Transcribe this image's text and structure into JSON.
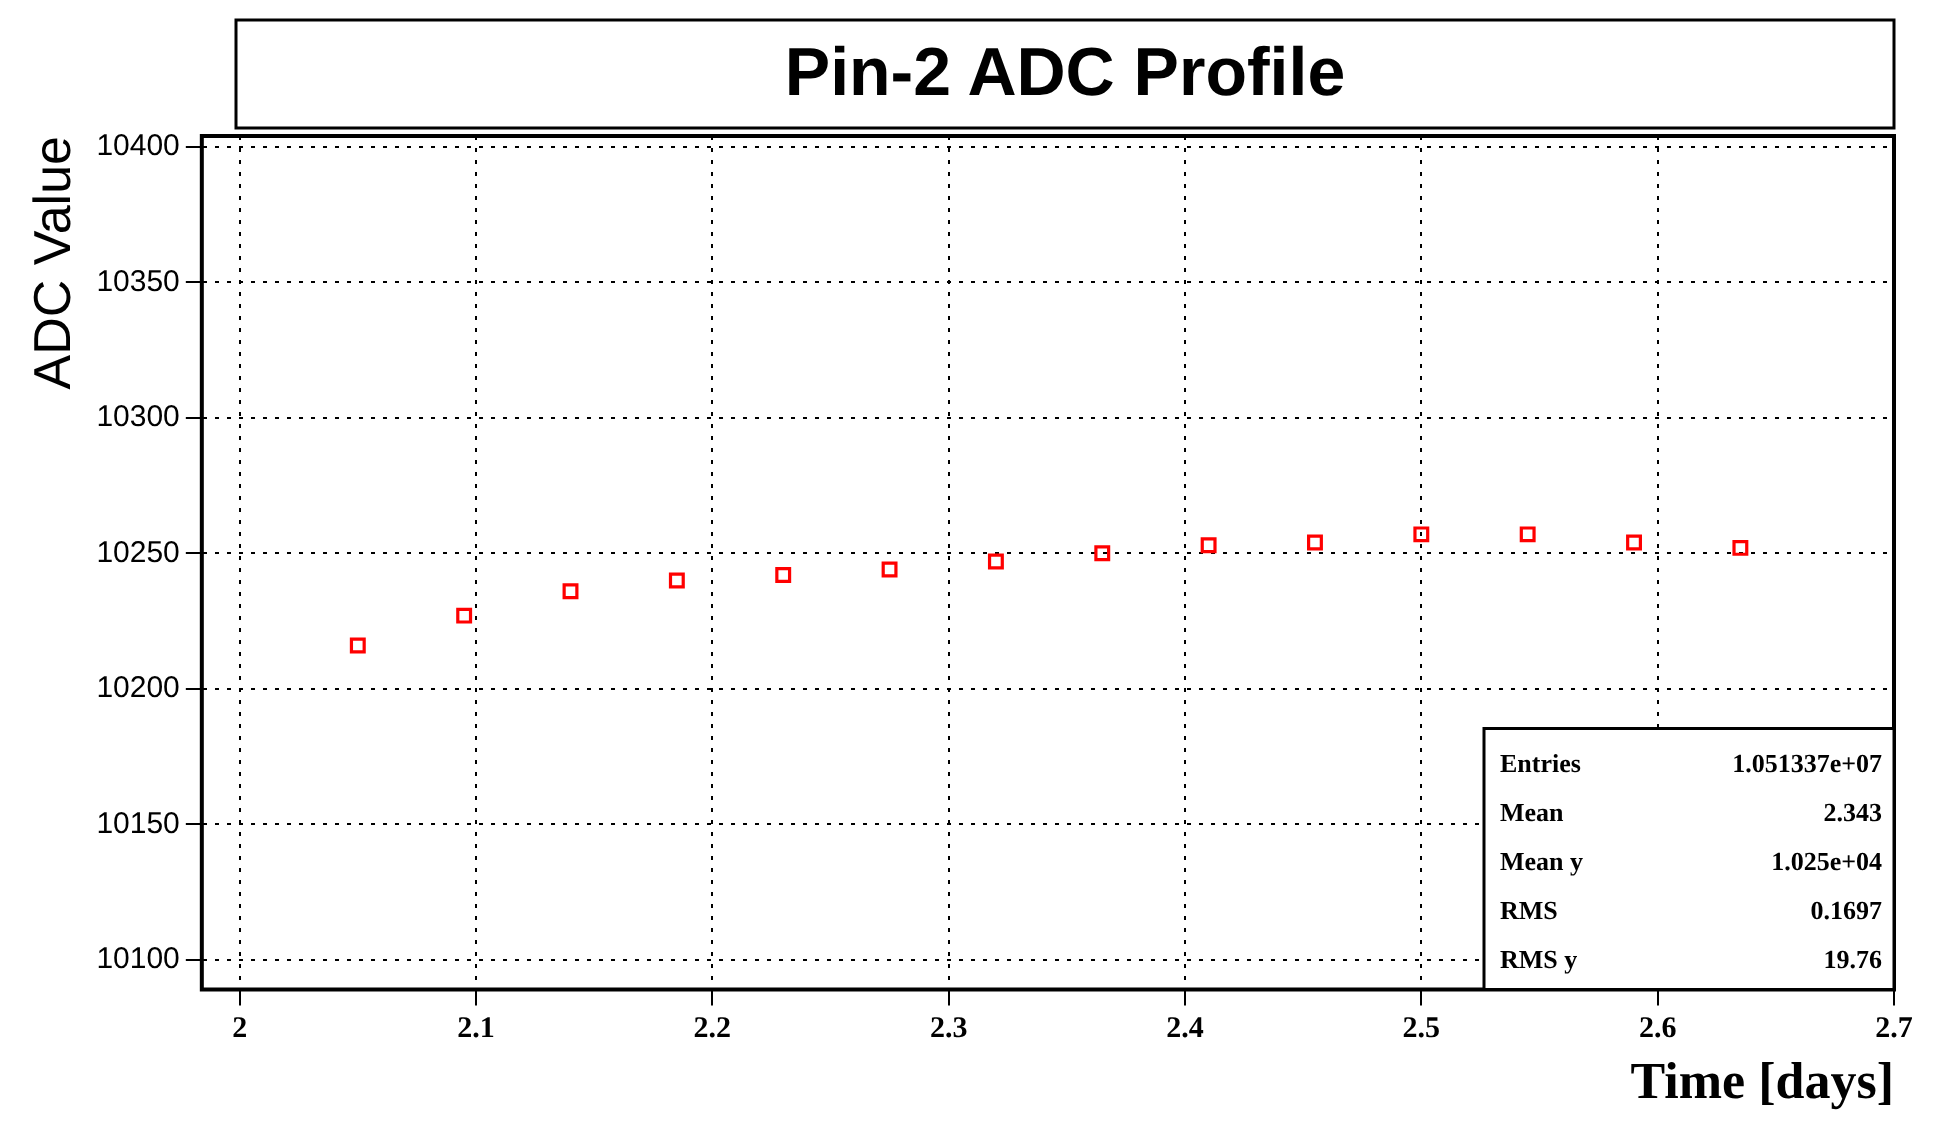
{
  "chart_data": {
    "type": "scatter",
    "title": "Pin-2 ADC Profile",
    "xlabel": "Time [days]",
    "ylabel": "ADC Value",
    "x": [
      2.05,
      2.095,
      2.14,
      2.185,
      2.23,
      2.275,
      2.32,
      2.365,
      2.41,
      2.455,
      2.5,
      2.545,
      2.59,
      2.635
    ],
    "series": [
      {
        "color": "#ff0000",
        "values": [
          10216,
          10227,
          10236,
          10240,
          10242,
          10244,
          10247,
          10250,
          10253,
          10254,
          10257,
          10257,
          10254,
          10252
        ]
      }
    ],
    "xlim": [
      1.984,
      2.7
    ],
    "xticks": [
      2,
      2.1,
      2.2,
      2.3,
      2.4,
      2.5,
      2.6,
      2.7
    ],
    "ylim": [
      10089,
      10404
    ],
    "yticks": [
      10100,
      10150,
      10200,
      10250,
      10300,
      10350,
      10400
    ],
    "grid": true,
    "legend": false,
    "marker": "square",
    "annotations": [
      "Entries 1.051337e+07",
      "Mean 2.343",
      "Mean y 1.025e+04",
      "RMS 0.1697",
      "RMS y 19.76"
    ]
  }
}
